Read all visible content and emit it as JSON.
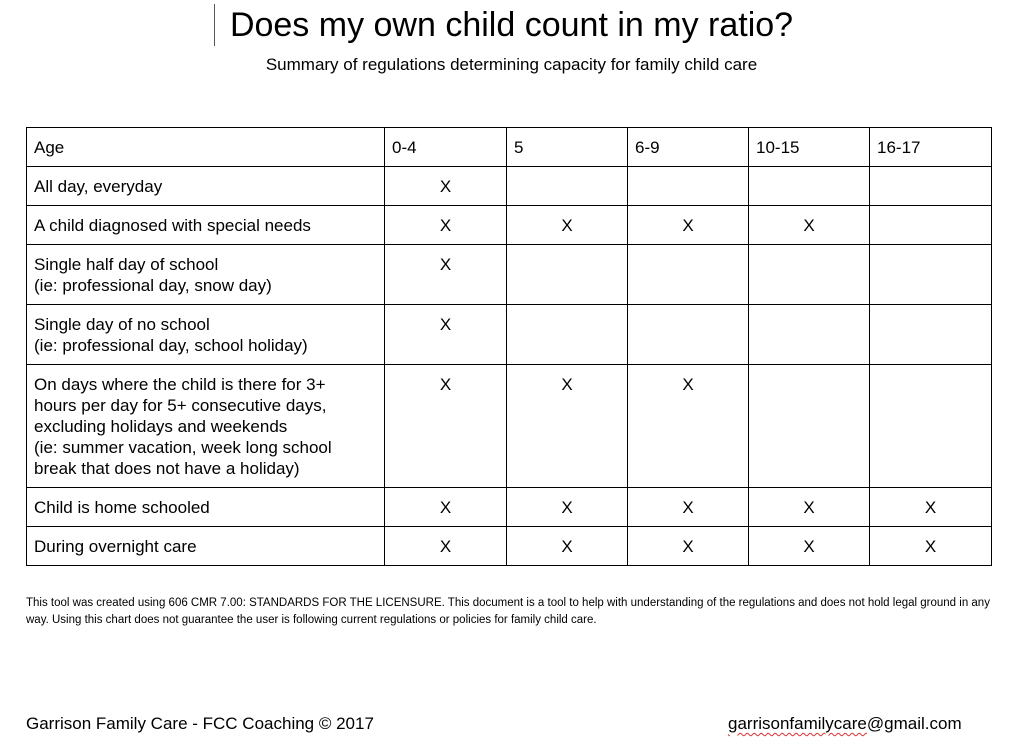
{
  "document": {
    "title": "Does my own child count in my ratio?",
    "subtitle": "Summary of regulations determining capacity for family child care"
  },
  "table": {
    "headers": [
      "Age",
      "0-4",
      "5",
      "6-9",
      "10-15",
      "16-17"
    ],
    "rows": [
      {
        "label_lines": [
          "All day, everyday"
        ],
        "cells": [
          "X",
          "",
          "",
          "",
          ""
        ]
      },
      {
        "label_lines": [
          "A child diagnosed with special needs"
        ],
        "cells": [
          "X",
          "X",
          "X",
          "X",
          ""
        ]
      },
      {
        "label_lines": [
          "Single half day of school",
          "(ie: professional day, snow day)"
        ],
        "cells": [
          "X",
          "",
          "",
          "",
          ""
        ]
      },
      {
        "label_lines": [
          "Single day of no school",
          "(ie: professional day, school holiday)"
        ],
        "cells": [
          "X",
          "",
          "",
          "",
          ""
        ]
      },
      {
        "label_lines": [
          "On days where the child is there for 3+",
          "hours per day for 5+ consecutive days,",
          "excluding holidays and weekends",
          "(ie: summer vacation, week long school",
          "break that does not have a holiday)"
        ],
        "cells": [
          "X",
          "X",
          "X",
          "",
          ""
        ]
      },
      {
        "label_lines": [
          "Child is home schooled"
        ],
        "cells": [
          "X",
          "X",
          "X",
          "X",
          "X"
        ]
      },
      {
        "label_lines": [
          "During overnight care"
        ],
        "cells": [
          "X",
          "X",
          "X",
          "X",
          "X"
        ]
      }
    ]
  },
  "disclaimer": "This tool was created using 606 CMR 7.00: STANDARDS FOR THE LICENSURE. This document is a tool to help with understanding of the regulations and does not hold legal ground in any way. Using this chart does not guarantee the user is following current regulations or policies for family child care.",
  "footer": {
    "left": "Garrison Family Care - FCC Coaching © 2017",
    "email_user": "garrisonfamilycare",
    "email_domain": "@gmail.com"
  }
}
